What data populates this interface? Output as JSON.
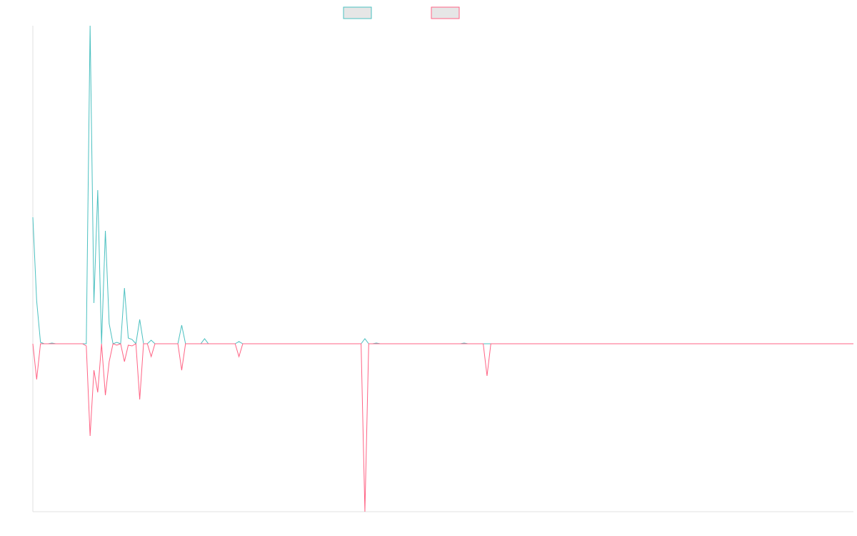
{
  "chart_data": {
    "type": "line",
    "ylim": [
      -235,
      445
    ],
    "series": [
      {
        "color": "#4bc0c0",
        "values": [
          177,
          60,
          2,
          0,
          0,
          1,
          0,
          0,
          0,
          0,
          0,
          0,
          0,
          0,
          0,
          445,
          57,
          215,
          0,
          158,
          28,
          0,
          2,
          0,
          78,
          8,
          6,
          0,
          34,
          0,
          0,
          5,
          0,
          0,
          0,
          0,
          0,
          0,
          0,
          26,
          0,
          0,
          0,
          0,
          0,
          7,
          0,
          0,
          0,
          0,
          0,
          0,
          0,
          0,
          3,
          0,
          0,
          0,
          0,
          0,
          0,
          0,
          0,
          0,
          0,
          0,
          0,
          0,
          0,
          0,
          0,
          0,
          0,
          0,
          0,
          0,
          0,
          0,
          0,
          0,
          0,
          0,
          0,
          0,
          0,
          0,
          0,
          7,
          0,
          0,
          1,
          0,
          0,
          0,
          0,
          0,
          0,
          0,
          0,
          0,
          0,
          0,
          0,
          0,
          0,
          0,
          0,
          0,
          0,
          0,
          0,
          0,
          0,
          1,
          0,
          0,
          0,
          0,
          0,
          0,
          0,
          0,
          0,
          0,
          0,
          0,
          0,
          0,
          0,
          0,
          0,
          0,
          0,
          0,
          0,
          0,
          0,
          0,
          0,
          0,
          0,
          0,
          0,
          0,
          0,
          0,
          0,
          0,
          0,
          0,
          0,
          0,
          0,
          0,
          0,
          0,
          0,
          0,
          0,
          0,
          0,
          0,
          0,
          0,
          0,
          0,
          0,
          0,
          0,
          0,
          0,
          0,
          0,
          0,
          0,
          0,
          0,
          0,
          0,
          0,
          0,
          0,
          0,
          0,
          0,
          0,
          0,
          0,
          0,
          0,
          0,
          0,
          0,
          0,
          0,
          0,
          0,
          0,
          0,
          0,
          0,
          0,
          0,
          0,
          0,
          0,
          0,
          0,
          0,
          0,
          0,
          0,
          0,
          0,
          0,
          0
        ]
      },
      {
        "color": "#ff6384",
        "values": [
          0,
          -50,
          0,
          0,
          0,
          0,
          0,
          0,
          0,
          0,
          0,
          0,
          0,
          0,
          -3,
          -129,
          -37,
          -68,
          0,
          -72,
          -25,
          0,
          -2,
          0,
          -25,
          -2,
          -3,
          0,
          -78,
          0,
          0,
          -18,
          0,
          0,
          0,
          0,
          0,
          0,
          0,
          -37,
          0,
          0,
          0,
          0,
          0,
          0,
          0,
          0,
          0,
          0,
          0,
          0,
          0,
          0,
          -18,
          0,
          0,
          0,
          0,
          0,
          0,
          0,
          0,
          0,
          0,
          0,
          0,
          0,
          0,
          0,
          0,
          0,
          0,
          0,
          0,
          0,
          0,
          0,
          0,
          0,
          0,
          0,
          0,
          0,
          0,
          0,
          0,
          -235,
          0,
          0,
          0,
          0,
          0,
          0,
          0,
          0,
          0,
          0,
          0,
          0,
          0,
          0,
          0,
          0,
          0,
          0,
          0,
          0,
          0,
          0,
          0,
          0,
          0,
          0,
          0,
          0,
          0,
          0,
          0,
          -45,
          0,
          0,
          0,
          0,
          0,
          0,
          0,
          0,
          0,
          0,
          0,
          0,
          0,
          0,
          0,
          0,
          0,
          0,
          0,
          0,
          0,
          0,
          0,
          0,
          0,
          0,
          0,
          0,
          0,
          0,
          0,
          0,
          0,
          0,
          0,
          0,
          0,
          0,
          0,
          0,
          0,
          0,
          0,
          0,
          0,
          0,
          0,
          0,
          0,
          0,
          0,
          0,
          0,
          0,
          0,
          0,
          0,
          0,
          0,
          0,
          0,
          0,
          0,
          0,
          0,
          0,
          0,
          0,
          0,
          0,
          0,
          0,
          0,
          0,
          0,
          0,
          0,
          0,
          0,
          0,
          0,
          0,
          0,
          0,
          0,
          0,
          0,
          0,
          0,
          0,
          0,
          0,
          0,
          0,
          0,
          0
        ]
      }
    ]
  }
}
